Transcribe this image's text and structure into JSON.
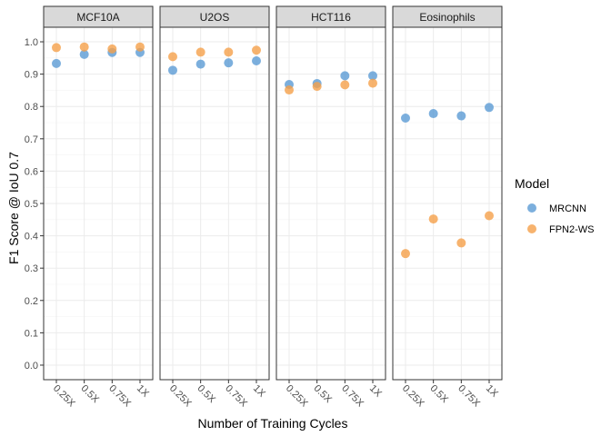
{
  "chart_data": {
    "type": "scatter",
    "facet_by": "cell type",
    "panels": [
      "MCF10A",
      "U2OS",
      "HCT116",
      "Eosinophils"
    ],
    "categories": [
      "0.25X",
      "0.5X",
      "0.75X",
      "1X"
    ],
    "xlabel": "Number of Training Cycles",
    "ylabel": "F1 Score @ IoU 0.7",
    "ylim": [
      0,
      1
    ],
    "yticks": [
      "0.0",
      "0.1",
      "0.2",
      "0.3",
      "0.4",
      "0.5",
      "0.6",
      "0.7",
      "0.8",
      "0.9",
      "1.0"
    ],
    "grid": true,
    "legend": {
      "title": "Model",
      "position": "right",
      "entries": [
        "MRCNN",
        "FPN2-WS"
      ]
    },
    "series": [
      {
        "name": "MRCNN",
        "color": "#5b9bd5",
        "values": {
          "MCF10A": [
            0.933,
            0.961,
            0.967,
            0.967
          ],
          "U2OS": [
            0.912,
            0.931,
            0.935,
            0.941
          ],
          "HCT116": [
            0.868,
            0.871,
            0.895,
            0.895
          ],
          "Eosinophils": [
            0.764,
            0.778,
            0.771,
            0.797
          ]
        }
      },
      {
        "name": "FPN2-WS",
        "color": "#f5a04a",
        "values": {
          "MCF10A": [
            0.982,
            0.984,
            0.978,
            0.984
          ],
          "U2OS": [
            0.954,
            0.968,
            0.968,
            0.974
          ],
          "HCT116": [
            0.851,
            0.862,
            0.867,
            0.872
          ],
          "Eosinophils": [
            0.345,
            0.452,
            0.378,
            0.462
          ]
        }
      }
    ]
  }
}
